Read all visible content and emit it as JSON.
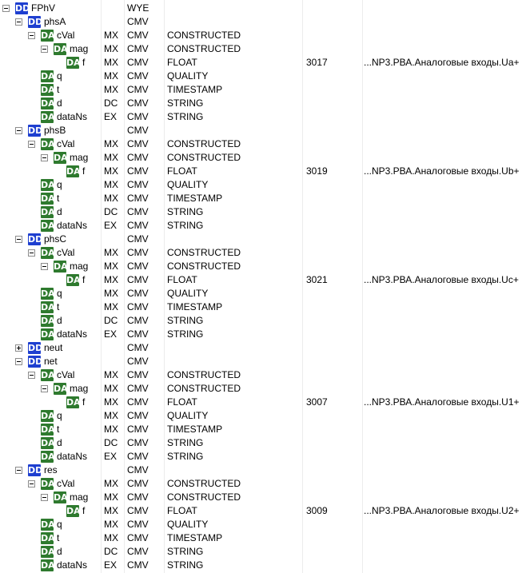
{
  "tree": {
    "rows": [
      {
        "level": 0,
        "exp": "minus",
        "badge": "DD",
        "name": "FPhV",
        "fc": "",
        "cdc": "WYE",
        "type": "",
        "addr": "",
        "path": ""
      },
      {
        "level": 1,
        "exp": "minus",
        "badge": "DD",
        "name": "phsA",
        "fc": "",
        "cdc": "CMV",
        "type": "",
        "addr": "",
        "path": ""
      },
      {
        "level": 2,
        "exp": "minus",
        "badge": "DA",
        "name": "cVal",
        "fc": "MX",
        "cdc": "CMV",
        "type": "CONSTRUCTED",
        "addr": "",
        "path": ""
      },
      {
        "level": 3,
        "exp": "minus",
        "badge": "DA",
        "name": "mag",
        "fc": "MX",
        "cdc": "CMV",
        "type": "CONSTRUCTED",
        "addr": "",
        "path": ""
      },
      {
        "level": 4,
        "exp": "",
        "badge": "DA",
        "name": "f",
        "fc": "MX",
        "cdc": "CMV",
        "type": "FLOAT",
        "addr": "3017",
        "path": "...NP3.РВА.Аналоговые входы.Ua+"
      },
      {
        "level": 2,
        "exp": "",
        "badge": "DA",
        "name": "q",
        "fc": "MX",
        "cdc": "CMV",
        "type": "QUALITY",
        "addr": "",
        "path": ""
      },
      {
        "level": 2,
        "exp": "",
        "badge": "DA",
        "name": "t",
        "fc": "MX",
        "cdc": "CMV",
        "type": "TIMESTAMP",
        "addr": "",
        "path": ""
      },
      {
        "level": 2,
        "exp": "",
        "badge": "DA",
        "name": "d",
        "fc": "DC",
        "cdc": "CMV",
        "type": "STRING",
        "addr": "",
        "path": ""
      },
      {
        "level": 2,
        "exp": "",
        "badge": "DA",
        "name": "dataNs",
        "fc": "EX",
        "cdc": "CMV",
        "type": "STRING",
        "addr": "",
        "path": ""
      },
      {
        "level": 1,
        "exp": "minus",
        "badge": "DD",
        "name": "phsB",
        "fc": "",
        "cdc": "CMV",
        "type": "",
        "addr": "",
        "path": ""
      },
      {
        "level": 2,
        "exp": "minus",
        "badge": "DA",
        "name": "cVal",
        "fc": "MX",
        "cdc": "CMV",
        "type": "CONSTRUCTED",
        "addr": "",
        "path": ""
      },
      {
        "level": 3,
        "exp": "minus",
        "badge": "DA",
        "name": "mag",
        "fc": "MX",
        "cdc": "CMV",
        "type": "CONSTRUCTED",
        "addr": "",
        "path": ""
      },
      {
        "level": 4,
        "exp": "",
        "badge": "DA",
        "name": "f",
        "fc": "MX",
        "cdc": "CMV",
        "type": "FLOAT",
        "addr": "3019",
        "path": "...NP3.РВА.Аналоговые входы.Ub+"
      },
      {
        "level": 2,
        "exp": "",
        "badge": "DA",
        "name": "q",
        "fc": "MX",
        "cdc": "CMV",
        "type": "QUALITY",
        "addr": "",
        "path": ""
      },
      {
        "level": 2,
        "exp": "",
        "badge": "DA",
        "name": "t",
        "fc": "MX",
        "cdc": "CMV",
        "type": "TIMESTAMP",
        "addr": "",
        "path": ""
      },
      {
        "level": 2,
        "exp": "",
        "badge": "DA",
        "name": "d",
        "fc": "DC",
        "cdc": "CMV",
        "type": "STRING",
        "addr": "",
        "path": ""
      },
      {
        "level": 2,
        "exp": "",
        "badge": "DA",
        "name": "dataNs",
        "fc": "EX",
        "cdc": "CMV",
        "type": "STRING",
        "addr": "",
        "path": ""
      },
      {
        "level": 1,
        "exp": "minus",
        "badge": "DD",
        "name": "phsC",
        "fc": "",
        "cdc": "CMV",
        "type": "",
        "addr": "",
        "path": ""
      },
      {
        "level": 2,
        "exp": "minus",
        "badge": "DA",
        "name": "cVal",
        "fc": "MX",
        "cdc": "CMV",
        "type": "CONSTRUCTED",
        "addr": "",
        "path": ""
      },
      {
        "level": 3,
        "exp": "minus",
        "badge": "DA",
        "name": "mag",
        "fc": "MX",
        "cdc": "CMV",
        "type": "CONSTRUCTED",
        "addr": "",
        "path": ""
      },
      {
        "level": 4,
        "exp": "",
        "badge": "DA",
        "name": "f",
        "fc": "MX",
        "cdc": "CMV",
        "type": "FLOAT",
        "addr": "3021",
        "path": "...NP3.РВА.Аналоговые входы.Uc+"
      },
      {
        "level": 2,
        "exp": "",
        "badge": "DA",
        "name": "q",
        "fc": "MX",
        "cdc": "CMV",
        "type": "QUALITY",
        "addr": "",
        "path": ""
      },
      {
        "level": 2,
        "exp": "",
        "badge": "DA",
        "name": "t",
        "fc": "MX",
        "cdc": "CMV",
        "type": "TIMESTAMP",
        "addr": "",
        "path": ""
      },
      {
        "level": 2,
        "exp": "",
        "badge": "DA",
        "name": "d",
        "fc": "DC",
        "cdc": "CMV",
        "type": "STRING",
        "addr": "",
        "path": ""
      },
      {
        "level": 2,
        "exp": "",
        "badge": "DA",
        "name": "dataNs",
        "fc": "EX",
        "cdc": "CMV",
        "type": "STRING",
        "addr": "",
        "path": ""
      },
      {
        "level": 1,
        "exp": "plus",
        "badge": "DD",
        "name": "neut",
        "fc": "",
        "cdc": "CMV",
        "type": "",
        "addr": "",
        "path": ""
      },
      {
        "level": 1,
        "exp": "minus",
        "badge": "DD",
        "name": "net",
        "fc": "",
        "cdc": "CMV",
        "type": "",
        "addr": "",
        "path": ""
      },
      {
        "level": 2,
        "exp": "minus",
        "badge": "DA",
        "name": "cVal",
        "fc": "MX",
        "cdc": "CMV",
        "type": "CONSTRUCTED",
        "addr": "",
        "path": ""
      },
      {
        "level": 3,
        "exp": "minus",
        "badge": "DA",
        "name": "mag",
        "fc": "MX",
        "cdc": "CMV",
        "type": "CONSTRUCTED",
        "addr": "",
        "path": ""
      },
      {
        "level": 4,
        "exp": "",
        "badge": "DA",
        "name": "f",
        "fc": "MX",
        "cdc": "CMV",
        "type": "FLOAT",
        "addr": "3007",
        "path": "...NP3.РВА.Аналоговые входы.U1+"
      },
      {
        "level": 2,
        "exp": "",
        "badge": "DA",
        "name": "q",
        "fc": "MX",
        "cdc": "CMV",
        "type": "QUALITY",
        "addr": "",
        "path": ""
      },
      {
        "level": 2,
        "exp": "",
        "badge": "DA",
        "name": "t",
        "fc": "MX",
        "cdc": "CMV",
        "type": "TIMESTAMP",
        "addr": "",
        "path": ""
      },
      {
        "level": 2,
        "exp": "",
        "badge": "DA",
        "name": "d",
        "fc": "DC",
        "cdc": "CMV",
        "type": "STRING",
        "addr": "",
        "path": ""
      },
      {
        "level": 2,
        "exp": "",
        "badge": "DA",
        "name": "dataNs",
        "fc": "EX",
        "cdc": "CMV",
        "type": "STRING",
        "addr": "",
        "path": ""
      },
      {
        "level": 1,
        "exp": "minus",
        "badge": "DD",
        "name": "res",
        "fc": "",
        "cdc": "CMV",
        "type": "",
        "addr": "",
        "path": ""
      },
      {
        "level": 2,
        "exp": "minus",
        "badge": "DA",
        "name": "cVal",
        "fc": "MX",
        "cdc": "CMV",
        "type": "CONSTRUCTED",
        "addr": "",
        "path": ""
      },
      {
        "level": 3,
        "exp": "minus",
        "badge": "DA",
        "name": "mag",
        "fc": "MX",
        "cdc": "CMV",
        "type": "CONSTRUCTED",
        "addr": "",
        "path": ""
      },
      {
        "level": 4,
        "exp": "",
        "badge": "DA",
        "name": "f",
        "fc": "MX",
        "cdc": "CMV",
        "type": "FLOAT",
        "addr": "3009",
        "path": "...NP3.РВА.Аналоговые входы.U2+"
      },
      {
        "level": 2,
        "exp": "",
        "badge": "DA",
        "name": "q",
        "fc": "MX",
        "cdc": "CMV",
        "type": "QUALITY",
        "addr": "",
        "path": ""
      },
      {
        "level": 2,
        "exp": "",
        "badge": "DA",
        "name": "t",
        "fc": "MX",
        "cdc": "CMV",
        "type": "TIMESTAMP",
        "addr": "",
        "path": ""
      },
      {
        "level": 2,
        "exp": "",
        "badge": "DA",
        "name": "d",
        "fc": "DC",
        "cdc": "CMV",
        "type": "STRING",
        "addr": "",
        "path": ""
      },
      {
        "level": 2,
        "exp": "",
        "badge": "DA",
        "name": "dataNs",
        "fc": "EX",
        "cdc": "CMV",
        "type": "STRING",
        "addr": "",
        "path": ""
      }
    ]
  }
}
